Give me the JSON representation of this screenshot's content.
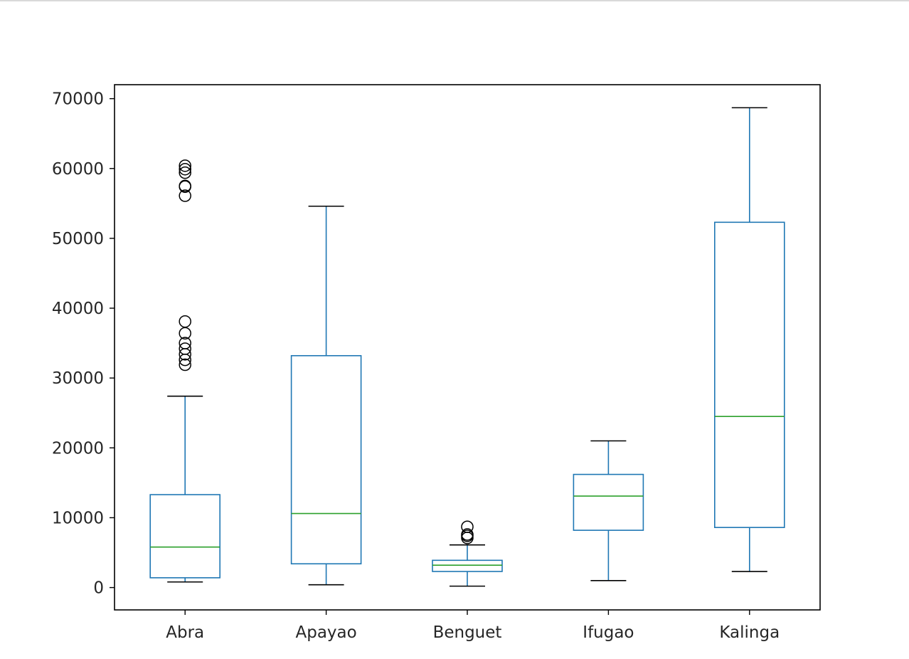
{
  "chart_data": {
    "type": "box",
    "title": "",
    "xlabel": "",
    "ylabel": "",
    "ylim": [
      -3200,
      72000
    ],
    "yticks": [
      0,
      10000,
      20000,
      30000,
      40000,
      50000,
      60000,
      70000
    ],
    "ytick_labels": [
      "0",
      "10000",
      "20000",
      "30000",
      "40000",
      "50000",
      "60000",
      "70000"
    ],
    "categories": [
      "Abra",
      "Apayao",
      "Benguet",
      "Ifugao",
      "Kalinga"
    ],
    "boxes": [
      {
        "category": "Abra",
        "whisker_low": 800,
        "q1": 1400,
        "median": 5800,
        "q3": 13300,
        "whisker_high": 27400,
        "outliers": [
          31900,
          32600,
          33400,
          34200,
          35000,
          36400,
          38100,
          56100,
          57400,
          57500,
          59400,
          59900,
          60400
        ]
      },
      {
        "category": "Apayao",
        "whisker_low": 400,
        "q1": 3400,
        "median": 10600,
        "q3": 33200,
        "whisker_high": 54600,
        "outliers": []
      },
      {
        "category": "Benguet",
        "whisker_low": 200,
        "q1": 2300,
        "median": 3200,
        "q3": 3900,
        "whisker_high": 6100,
        "outliers": [
          7100,
          7400,
          7600,
          8700
        ]
      },
      {
        "category": "Ifugao",
        "whisker_low": 1000,
        "q1": 8200,
        "median": 13100,
        "q3": 16200,
        "whisker_high": 21000,
        "outliers": []
      },
      {
        "category": "Kalinga",
        "whisker_low": 2300,
        "q1": 8600,
        "median": 24500,
        "q3": 52300,
        "whisker_high": 68700,
        "outliers": []
      }
    ],
    "colors": {
      "box": "#1f77b4",
      "median": "#2ca02c",
      "whisker_cap": "#000000",
      "outlier": "#000000",
      "axes": "#000000"
    },
    "grid": false,
    "legend": "none"
  }
}
